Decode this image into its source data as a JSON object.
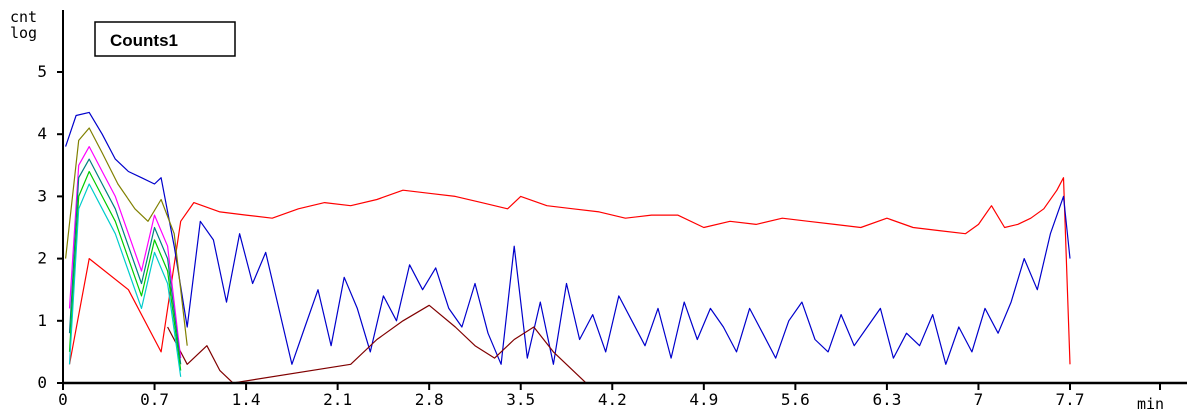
{
  "chart_data": {
    "type": "line",
    "title": "",
    "legend": {
      "label": "Counts1",
      "placement": "top-left"
    },
    "ylabel_line1": "cnt",
    "ylabel_line2": "log",
    "xlabel": "min",
    "xlim": [
      0,
      8.1
    ],
    "ylim": [
      0,
      5
    ],
    "x_ticks": [
      0,
      0.7,
      1.4,
      2.1,
      2.8,
      3.5,
      4.2,
      4.9,
      5.6,
      6.3,
      7,
      7.7
    ],
    "x_tick_labels": [
      "0",
      "0.7",
      "1.4",
      "2.1",
      "2.8",
      "3.5",
      "4.2",
      "4.9",
      "5.6",
      "6.3",
      "7",
      "7.7"
    ],
    "y_ticks": [
      0,
      1,
      2,
      3,
      4,
      5
    ],
    "y_tick_labels": [
      "0",
      "1",
      "2",
      "3",
      "4",
      "5"
    ],
    "grid": false,
    "y_scale": "log10 counts",
    "series": [
      {
        "color": "#ff0000",
        "x": [
          0.05,
          0.2,
          0.5,
          0.75,
          0.9,
          1.0,
          1.2,
          1.4,
          1.6,
          1.8,
          2.0,
          2.2,
          2.4,
          2.6,
          2.8,
          3.0,
          3.2,
          3.4,
          3.5,
          3.7,
          3.9,
          4.1,
          4.3,
          4.5,
          4.7,
          4.9,
          5.1,
          5.3,
          5.5,
          5.7,
          5.9,
          6.1,
          6.3,
          6.5,
          6.7,
          6.9,
          7.0,
          7.1,
          7.2,
          7.3,
          7.4,
          7.5,
          7.6,
          7.65,
          7.7
        ],
        "values": [
          0.3,
          2.0,
          1.5,
          0.5,
          2.6,
          2.9,
          2.75,
          2.7,
          2.65,
          2.8,
          2.9,
          2.85,
          2.95,
          3.1,
          3.05,
          3.0,
          2.9,
          2.8,
          3.0,
          2.85,
          2.8,
          2.75,
          2.65,
          2.7,
          2.7,
          2.5,
          2.6,
          2.55,
          2.65,
          2.6,
          2.55,
          2.5,
          2.65,
          2.5,
          2.45,
          2.4,
          2.55,
          2.85,
          2.5,
          2.55,
          2.65,
          2.8,
          3.1,
          3.3,
          0.3
        ]
      },
      {
        "color": "#0000cc",
        "x": [
          0.02,
          0.1,
          0.2,
          0.3,
          0.4,
          0.5,
          0.6,
          0.7,
          0.75,
          0.85,
          0.95,
          1.05,
          1.15,
          1.25,
          1.35,
          1.45,
          1.55,
          1.65,
          1.75,
          1.85,
          1.95,
          2.05,
          2.15,
          2.25,
          2.35,
          2.45,
          2.55,
          2.65,
          2.75,
          2.85,
          2.95,
          3.05,
          3.15,
          3.25,
          3.35,
          3.45,
          3.55,
          3.65,
          3.75,
          3.85,
          3.95,
          4.05,
          4.15,
          4.25,
          4.35,
          4.45,
          4.55,
          4.65,
          4.75,
          4.85,
          4.95,
          5.05,
          5.15,
          5.25,
          5.35,
          5.45,
          5.55,
          5.65,
          5.75,
          5.85,
          5.95,
          6.05,
          6.15,
          6.25,
          6.35,
          6.45,
          6.55,
          6.65,
          6.75,
          6.85,
          6.95,
          7.05,
          7.15,
          7.25,
          7.35,
          7.45,
          7.55,
          7.65,
          7.7
        ],
        "values": [
          3.8,
          4.3,
          4.35,
          4.0,
          3.6,
          3.4,
          3.3,
          3.2,
          3.3,
          2.2,
          0.9,
          2.6,
          2.3,
          1.3,
          2.4,
          1.6,
          2.1,
          1.2,
          0.3,
          0.9,
          1.5,
          0.6,
          1.7,
          1.2,
          0.5,
          1.4,
          1.0,
          1.9,
          1.5,
          1.85,
          1.2,
          0.9,
          1.6,
          0.8,
          0.3,
          2.2,
          0.4,
          1.3,
          0.3,
          1.6,
          0.7,
          1.1,
          0.5,
          1.4,
          1.0,
          0.6,
          1.2,
          0.4,
          1.3,
          0.7,
          1.2,
          0.9,
          0.5,
          1.2,
          0.8,
          0.4,
          1.0,
          1.3,
          0.7,
          0.5,
          1.1,
          0.6,
          0.9,
          1.2,
          0.4,
          0.8,
          0.6,
          1.1,
          0.3,
          0.9,
          0.5,
          1.2,
          0.8,
          1.3,
          2.0,
          1.5,
          2.4,
          3.0,
          2.0
        ]
      },
      {
        "color": "#800000",
        "x": [
          0.8,
          0.95,
          1.1,
          1.2,
          1.3,
          2.2,
          2.4,
          2.6,
          2.8,
          3.0,
          3.15,
          3.3,
          3.45,
          3.6,
          3.75,
          3.9,
          4.0
        ],
        "values": [
          0.9,
          0.3,
          0.6,
          0.2,
          0.0,
          0.3,
          0.7,
          1.0,
          1.25,
          0.9,
          0.6,
          0.4,
          0.7,
          0.9,
          0.5,
          0.2,
          0.0
        ]
      },
      {
        "color": "#808000",
        "x": [
          0.02,
          0.12,
          0.2,
          0.3,
          0.42,
          0.55,
          0.65,
          0.75,
          0.85,
          0.95
        ],
        "values": [
          2.0,
          3.9,
          4.1,
          3.7,
          3.2,
          2.8,
          2.6,
          2.95,
          2.4,
          0.6
        ]
      },
      {
        "color": "#ff00ff",
        "x": [
          0.05,
          0.12,
          0.2,
          0.3,
          0.4,
          0.5,
          0.6,
          0.7,
          0.8,
          0.9
        ],
        "values": [
          1.2,
          3.5,
          3.8,
          3.4,
          3.0,
          2.4,
          1.8,
          2.7,
          2.2,
          0.4
        ]
      },
      {
        "color": "#008080",
        "x": [
          0.05,
          0.12,
          0.2,
          0.3,
          0.4,
          0.5,
          0.6,
          0.7,
          0.8,
          0.9
        ],
        "values": [
          0.8,
          3.3,
          3.6,
          3.2,
          2.8,
          2.2,
          1.6,
          2.5,
          2.0,
          0.3
        ]
      },
      {
        "color": "#00cc00",
        "x": [
          0.05,
          0.12,
          0.2,
          0.3,
          0.4,
          0.5,
          0.6,
          0.7,
          0.8,
          0.9
        ],
        "values": [
          0.5,
          3.0,
          3.4,
          3.0,
          2.6,
          2.0,
          1.4,
          2.3,
          1.8,
          0.2
        ]
      },
      {
        "color": "#00cccc",
        "x": [
          0.05,
          0.12,
          0.2,
          0.3,
          0.4,
          0.5,
          0.6,
          0.7,
          0.8,
          0.9
        ],
        "values": [
          0.3,
          2.8,
          3.2,
          2.8,
          2.4,
          1.8,
          1.2,
          2.1,
          1.6,
          0.1
        ]
      }
    ]
  }
}
